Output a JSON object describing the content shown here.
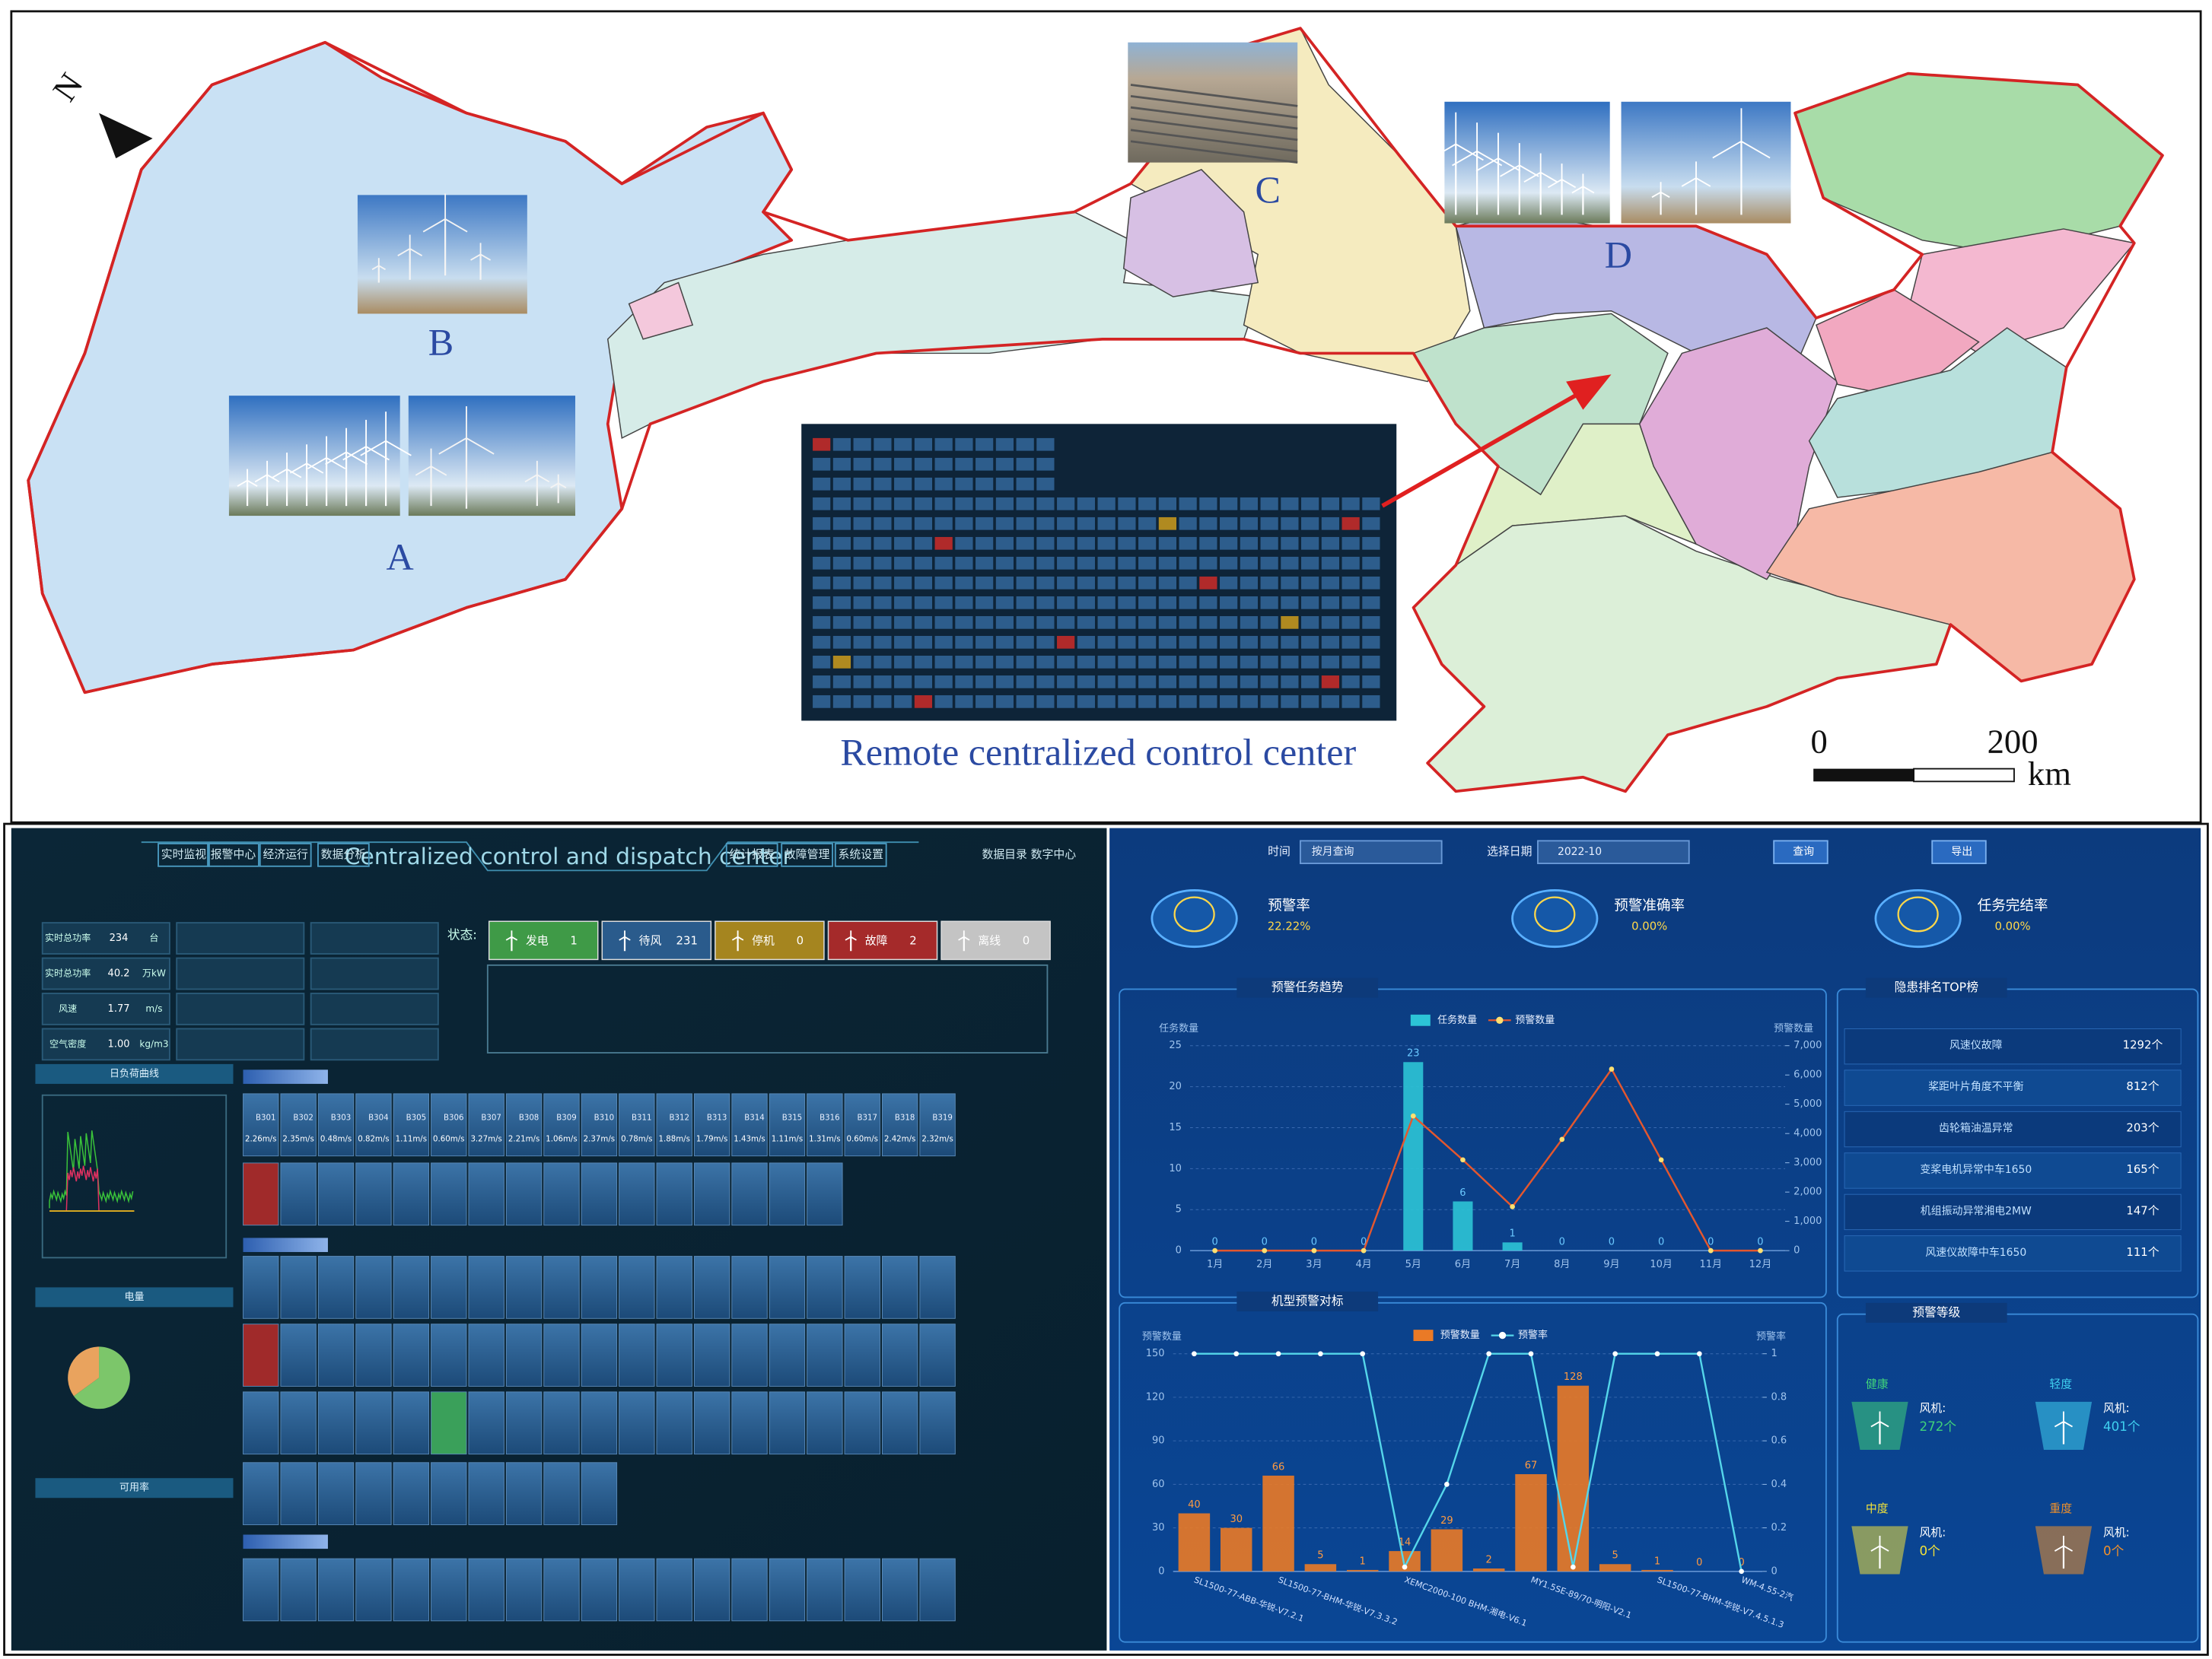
{
  "map": {
    "labels": [
      "A",
      "B",
      "C",
      "D"
    ],
    "north": "N",
    "caption": "Remote centralized control center",
    "scale": {
      "ticks": [
        "0",
        "200"
      ],
      "unit": "km"
    }
  },
  "control_center": {
    "title": "Centralized control and dispatch center",
    "nav_left": [
      "实时监视",
      "报警中心",
      "经济运行",
      "数据分析"
    ],
    "nav_right": [
      "统计报表",
      "故障管理",
      "系统设置"
    ],
    "user": "数据目录 数字中心",
    "status_label": "状态:",
    "status": [
      {
        "name": "发电",
        "count": 1,
        "color": "#3f9a47"
      },
      {
        "name": "待风",
        "count": 231,
        "color": "#2a5b8c"
      },
      {
        "name": "停机",
        "count": 0,
        "color": "#a5851f"
      },
      {
        "name": "故障",
        "count": 2,
        "color": "#a52a2a"
      },
      {
        "name": "离线",
        "count": 0,
        "color": "#c4c4c4"
      }
    ],
    "info": [
      {
        "label": "实时总功率",
        "value": "234",
        "unit": "台"
      },
      {
        "label": "实时总功率",
        "value": "40.2",
        "unit": "万kW"
      },
      {
        "label": "风速",
        "value": "1.77",
        "unit": "m/s"
      },
      {
        "label": "空气密度",
        "value": "1.00",
        "unit": "kg/m3"
      }
    ],
    "panels": [
      "日负荷曲线",
      "电量",
      "可用率"
    ],
    "energy_pie": {
      "type": "pie",
      "values": [
        65,
        35
      ],
      "colors": [
        "#7cc66a",
        "#e9a35e"
      ]
    },
    "turbines": [
      {
        "id": "B301",
        "speed": "2.26m/s"
      },
      {
        "id": "B302",
        "speed": "2.35m/s"
      },
      {
        "id": "B303",
        "speed": "0.48m/s"
      },
      {
        "id": "B304",
        "speed": "0.82m/s"
      },
      {
        "id": "B305",
        "speed": "1.11m/s"
      },
      {
        "id": "B306",
        "speed": "0.60m/s"
      },
      {
        "id": "B307",
        "speed": "3.27m/s"
      },
      {
        "id": "B308",
        "speed": "2.21m/s"
      },
      {
        "id": "B309",
        "speed": "1.06m/s"
      },
      {
        "id": "B310",
        "speed": "2.37m/s"
      },
      {
        "id": "B311",
        "speed": "0.78m/s"
      },
      {
        "id": "B312",
        "speed": "1.88m/s"
      },
      {
        "id": "B313",
        "speed": "1.79m/s"
      },
      {
        "id": "B314",
        "speed": "1.43m/s"
      },
      {
        "id": "B315",
        "speed": "1.11m/s"
      },
      {
        "id": "B316",
        "speed": "1.31m/s"
      },
      {
        "id": "B317",
        "speed": "0.60m/s"
      },
      {
        "id": "B318",
        "speed": "2.42m/s"
      },
      {
        "id": "B319",
        "speed": "2.32m/s"
      }
    ]
  },
  "warning_center": {
    "controls": {
      "time_label": "时间",
      "time_mode": "按月查询",
      "date_label": "选择日期",
      "date": "2022-10",
      "search": "查询",
      "export": "导出"
    },
    "kpis": [
      {
        "title": "预警率",
        "value": "22.22%"
      },
      {
        "title": "预警准确率",
        "value": "0.00%"
      },
      {
        "title": "任务完结率",
        "value": "0.00%"
      }
    ],
    "trend_chart": {
      "type": "bar",
      "title": "预警任务趋势",
      "ylabel": "任务数量",
      "y2label": "预警数量",
      "categories": [
        "1月",
        "2月",
        "3月",
        "4月",
        "5月",
        "6月",
        "7月",
        "8月",
        "9月",
        "10月",
        "11月",
        "12月"
      ],
      "series": [
        {
          "name": "任务数量",
          "color": "#2cc4d6",
          "values": [
            0,
            0,
            0,
            0,
            23,
            6,
            1,
            0,
            0,
            0,
            0,
            0
          ]
        },
        {
          "name": "预警数量",
          "color": "#e4572e",
          "axis": "y2",
          "values": [
            0,
            0,
            0,
            0,
            4600,
            3100,
            1500,
            3800,
            6200,
            3100,
            0,
            0
          ]
        }
      ],
      "ylim": [
        0,
        25
      ],
      "yticks": [
        0,
        5,
        10,
        15,
        20,
        25
      ],
      "y2lim": [
        0,
        7000
      ],
      "y2ticks": [
        0,
        {
          "value": 1000,
          "label": "1,000"
        },
        {
          "value": 2000,
          "label": "2,000"
        },
        {
          "value": 3000,
          "label": "3,000"
        },
        {
          "value": 4000,
          "label": "4,000"
        },
        {
          "value": 5000,
          "label": "5,000"
        },
        {
          "value": 6000,
          "label": "6,000"
        },
        {
          "value": 7000,
          "label": "7,000"
        }
      ],
      "grid": true
    },
    "model_chart": {
      "type": "bar",
      "title": "机型预警对标",
      "ylabel": "预警数量",
      "y2label": "预警率",
      "categories": [
        "SL1500-77-ABB-华锐-V7.2.1",
        null,
        "SL1500-77-BHM-华锐-V7.3.3.2",
        null,
        null,
        "XEMC2000-100 BHM-湘电-V6.1",
        null,
        null,
        "MY1.5SE-89/70-明阳-V2.1",
        null,
        null,
        "SL1500-77-BHM-华锐-V7.4.5.1.3",
        null,
        "WM-4.55-2汽"
      ],
      "series": [
        {
          "name": "预警数量",
          "color": "#ea7a26",
          "values": [
            40,
            30,
            66,
            5,
            1,
            14,
            29,
            2,
            67,
            128,
            5,
            1,
            0,
            0
          ]
        },
        {
          "name": "预警率",
          "color": "#55d6ea",
          "axis": "y2",
          "values": [
            1,
            1,
            1,
            1,
            1,
            0.02,
            0.4,
            1,
            1,
            0.02,
            1,
            1,
            1,
            0
          ]
        }
      ],
      "ylim": [
        0,
        150
      ],
      "yticks": [
        0,
        30,
        60,
        90,
        120,
        150
      ],
      "y2lim": [
        0,
        1
      ],
      "y2ticks": [
        0,
        0.2,
        0.4,
        0.6,
        0.8,
        1
      ],
      "grid": true
    },
    "top_list": {
      "title": "隐患排名TOP榜",
      "items": [
        {
          "name": "风速仪故障",
          "count": "1292个"
        },
        {
          "name": "桨距叶片角度不平衡",
          "count": "812个"
        },
        {
          "name": "齿轮箱油温异常",
          "count": "203个"
        },
        {
          "name": "变桨电机异常中车1650",
          "count": "165个"
        },
        {
          "name": "机组振动异常湘电2MW",
          "count": "147个"
        },
        {
          "name": "风速仪故障中车1650",
          "count": "111个"
        }
      ]
    },
    "levels": {
      "title": "预警等级",
      "label": "风机:",
      "items": [
        {
          "level": "健康",
          "count": "272个",
          "color": "#3fd27a"
        },
        {
          "level": "轻度",
          "count": "401个",
          "color": "#3fd0f0"
        },
        {
          "level": "中度",
          "count": "0个",
          "color": "#f2e23a"
        },
        {
          "level": "重度",
          "count": "0个",
          "color": "#f0902a"
        }
      ]
    }
  }
}
